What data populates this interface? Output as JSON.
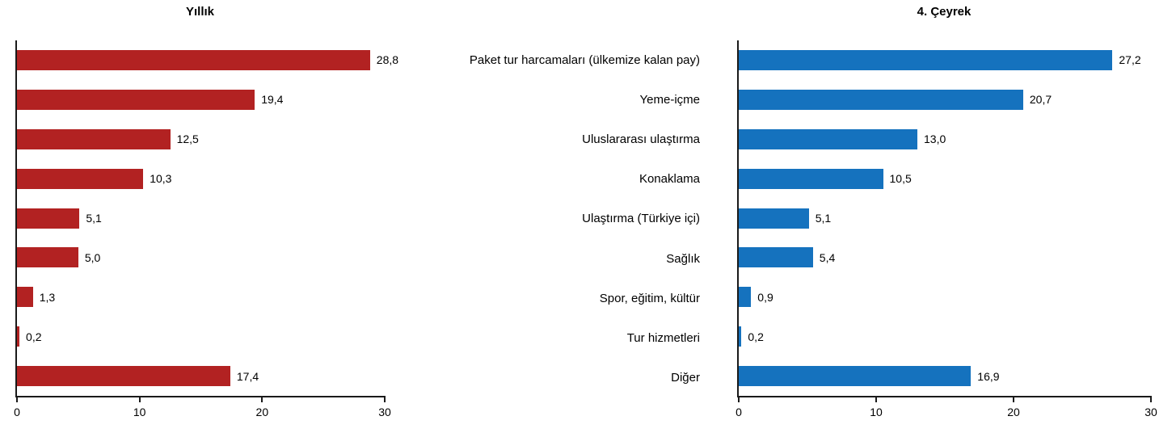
{
  "chart_data": [
    {
      "type": "bar",
      "orientation": "horizontal",
      "title": "Yıllık",
      "bar_color": "#B22222",
      "categories": [
        "Paket tur harcamaları (ülkemize kalan pay)",
        "Yeme-içme",
        "Uluslararası ulaştırma",
        "Konaklama",
        "Ulaştırma (Türkiye içi)",
        "Sağlık",
        "Spor, eğitim, kültür",
        "Tur hizmetleri",
        "Diğer"
      ],
      "values": [
        28.8,
        19.4,
        12.5,
        10.3,
        5.1,
        5.0,
        1.3,
        0.2,
        17.4
      ],
      "value_labels": [
        "28,8",
        "19,4",
        "12,5",
        "10,3",
        "5,1",
        "5,0",
        "1,3",
        "0,2",
        "17,4"
      ],
      "xlim": [
        0,
        30
      ],
      "x_ticks": [
        0,
        10,
        20,
        30
      ],
      "x_tick_labels": [
        "0",
        "10",
        "20",
        "30"
      ],
      "grid": false,
      "legend": false
    },
    {
      "type": "bar",
      "orientation": "horizontal",
      "title": "4. Çeyrek",
      "bar_color": "#1572BE",
      "categories": [
        "Paket tur harcamaları (ülkemize kalan pay)",
        "Yeme-içme",
        "Uluslararası ulaştırma",
        "Konaklama",
        "Ulaştırma (Türkiye içi)",
        "Sağlık",
        "Spor, eğitim, kültür",
        "Tur hizmetleri",
        "Diğer"
      ],
      "values": [
        27.2,
        20.7,
        13.0,
        10.5,
        5.1,
        5.4,
        0.9,
        0.2,
        16.9
      ],
      "value_labels": [
        "27,2",
        "20,7",
        "13,0",
        "10,5",
        "5,1",
        "5,4",
        "0,9",
        "0,2",
        "16,9"
      ],
      "xlim": [
        0,
        30
      ],
      "x_ticks": [
        0,
        10,
        20,
        30
      ],
      "x_tick_labels": [
        "0",
        "10",
        "20",
        "30"
      ],
      "grid": false,
      "legend": false
    }
  ]
}
